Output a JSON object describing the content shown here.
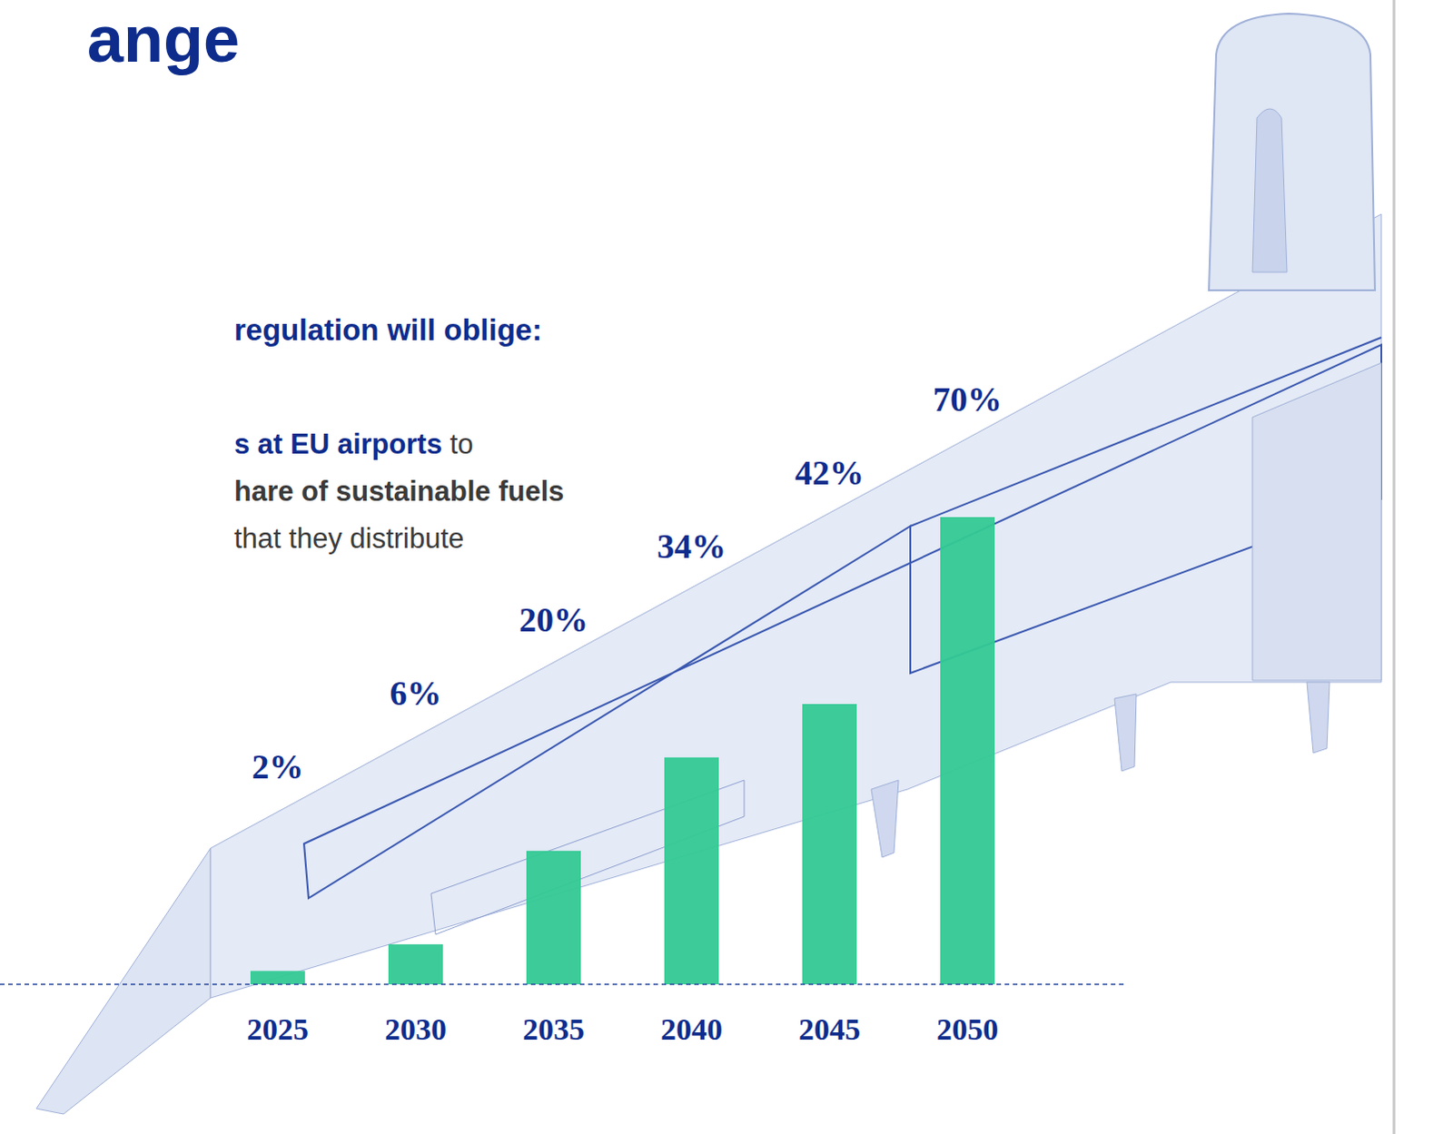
{
  "chart_data": {
    "type": "bar",
    "title": "ange",
    "subtitle": "regulation will oblige:",
    "annotations": [
      [
        "s at EU airports",
        " to"
      ],
      [
        "hare of sustainable fuels"
      ],
      [
        "that they distribute"
      ]
    ],
    "categories": [
      "2025",
      "2030",
      "2035",
      "2040",
      "2045",
      "2050"
    ],
    "values": [
      2,
      6,
      20,
      34,
      42,
      70
    ],
    "value_labels": [
      "2%",
      "6%",
      "20%",
      "34%",
      "42%",
      "70%"
    ],
    "color": "#33c993",
    "ylim": [
      0,
      70
    ],
    "grid": false,
    "data_labels": true,
    "tick_labels": "x"
  }
}
